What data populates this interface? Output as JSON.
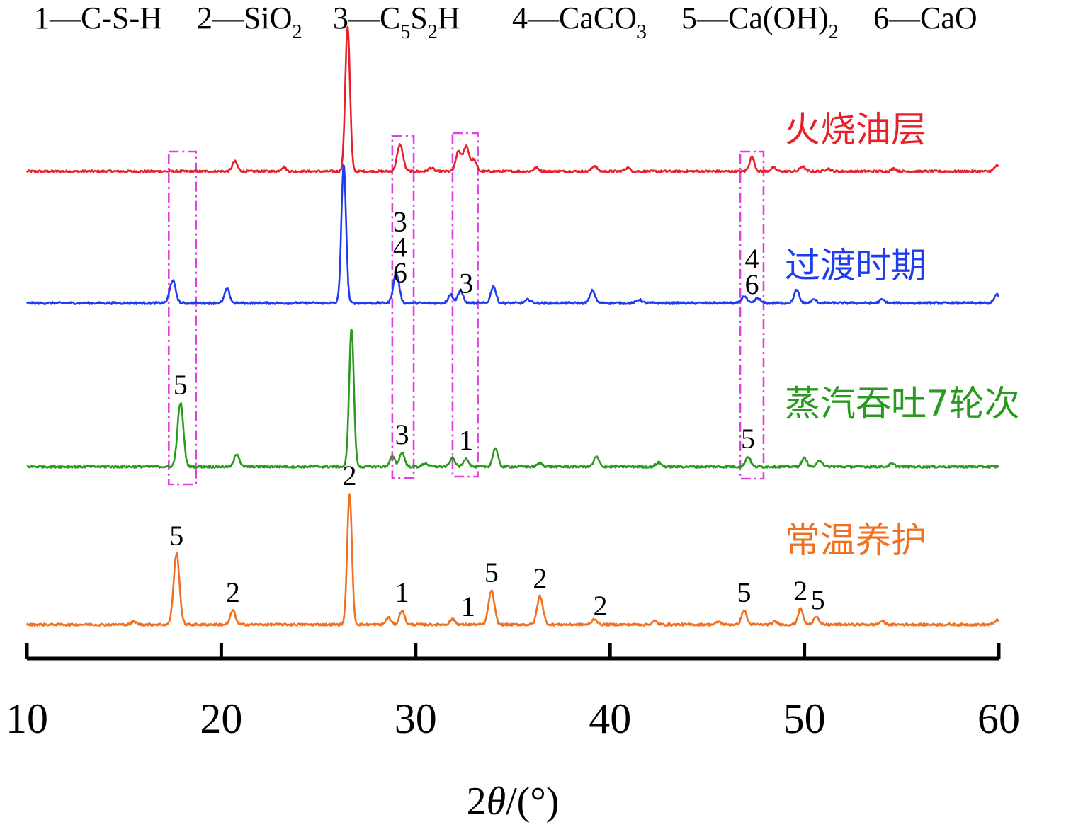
{
  "chart_data": {
    "type": "line",
    "title": "",
    "xlabel": "2θ/(°)",
    "ylabel": "",
    "xlim": [
      10,
      60
    ],
    "xticks": [
      "10",
      "20",
      "30",
      "40",
      "50",
      "60"
    ],
    "grid": false,
    "legend_position": "top",
    "phase_legend": [
      {
        "num": "1",
        "name": "C-S-H"
      },
      {
        "num": "2",
        "name": "SiO",
        "sub": "2"
      },
      {
        "num": "3",
        "name": "C",
        "sub": "5",
        "name2": "S",
        "sub2": "2",
        "name3": "H"
      },
      {
        "num": "4",
        "name": "CaCO",
        "sub": "3"
      },
      {
        "num": "5",
        "name": "Ca(OH)",
        "sub": "2"
      },
      {
        "num": "6",
        "name": "CaO"
      }
    ],
    "colors": {
      "fire": "#e8202a",
      "transition": "#1e3cf0",
      "steam": "#2a9a1e",
      "normal": "#f07020",
      "box": "#e040e0",
      "axis": "#000000"
    },
    "series": [
      {
        "name": "火烧油层",
        "color": "#e8202a",
        "baseline": 0,
        "peaks": [
          [
            20.7,
            14
          ],
          [
            23.2,
            6
          ],
          [
            26.5,
            205
          ],
          [
            29.2,
            38
          ],
          [
            30.8,
            5
          ],
          [
            32.2,
            28
          ],
          [
            32.6,
            36
          ],
          [
            33.0,
            16
          ],
          [
            36.2,
            5
          ],
          [
            39.2,
            8
          ],
          [
            40.9,
            5
          ],
          [
            47.3,
            20
          ],
          [
            48.4,
            5
          ],
          [
            49.9,
            7
          ],
          [
            51.2,
            4
          ],
          [
            54.6,
            4
          ],
          [
            59.9,
            8
          ]
        ]
      },
      {
        "name": "过渡时期",
        "color": "#1e3cf0",
        "baseline": 0,
        "peaks": [
          [
            17.5,
            32
          ],
          [
            20.3,
            20
          ],
          [
            26.3,
            195
          ],
          [
            29.0,
            42
          ],
          [
            31.8,
            12
          ],
          [
            32.3,
            18
          ],
          [
            34.0,
            24
          ],
          [
            35.8,
            5
          ],
          [
            39.1,
            18
          ],
          [
            41.5,
            5
          ],
          [
            46.9,
            10
          ],
          [
            47.6,
            7
          ],
          [
            49.6,
            18
          ],
          [
            50.5,
            5
          ],
          [
            54.0,
            5
          ],
          [
            59.9,
            12
          ]
        ]
      },
      {
        "name": "蒸汽吞吐7轮次",
        "color": "#2a9a1e",
        "baseline": 0,
        "peaks": [
          [
            17.9,
            90
          ],
          [
            20.8,
            18
          ],
          [
            26.7,
            195
          ],
          [
            28.8,
            14
          ],
          [
            29.3,
            20
          ],
          [
            30.5,
            5
          ],
          [
            31.9,
            12
          ],
          [
            32.6,
            12
          ],
          [
            34.1,
            26
          ],
          [
            36.4,
            5
          ],
          [
            39.3,
            14
          ],
          [
            42.5,
            6
          ],
          [
            47.1,
            14
          ],
          [
            50.0,
            12
          ],
          [
            50.8,
            9
          ],
          [
            54.5,
            4
          ]
        ]
      },
      {
        "name": "常温养护",
        "color": "#f07020",
        "baseline": 0,
        "peaks": [
          [
            15.5,
            4
          ],
          [
            17.7,
            100
          ],
          [
            20.6,
            20
          ],
          [
            26.6,
            185
          ],
          [
            28.6,
            10
          ],
          [
            29.3,
            20
          ],
          [
            31.9,
            8
          ],
          [
            33.9,
            48
          ],
          [
            36.4,
            40
          ],
          [
            39.2,
            8
          ],
          [
            42.3,
            5
          ],
          [
            45.6,
            4
          ],
          [
            46.9,
            20
          ],
          [
            48.5,
            4
          ],
          [
            49.8,
            22
          ],
          [
            50.6,
            12
          ],
          [
            54.0,
            5
          ],
          [
            59.9,
            6
          ]
        ]
      }
    ],
    "peak_labels": [
      {
        "series": "常温养护",
        "x": 17.7,
        "text": "5"
      },
      {
        "series": "常温养护",
        "x": 20.6,
        "text": "2"
      },
      {
        "series": "常温养护",
        "x": 26.6,
        "text": "2"
      },
      {
        "series": "常温养护",
        "x": 29.3,
        "text": "1"
      },
      {
        "series": "常温养护",
        "x": 32.7,
        "text": "1"
      },
      {
        "series": "常温养护",
        "x": 33.9,
        "text": "5"
      },
      {
        "series": "常温养护",
        "x": 36.4,
        "text": "2"
      },
      {
        "series": "常温养护",
        "x": 39.5,
        "text": "2"
      },
      {
        "series": "常温养护",
        "x": 46.9,
        "text": "5"
      },
      {
        "series": "常温养护",
        "x": 49.8,
        "text": "2"
      },
      {
        "series": "常温养护",
        "x": 50.7,
        "text": "5"
      },
      {
        "series": "蒸汽吞吐7轮次",
        "x": 17.9,
        "text": "5"
      },
      {
        "series": "蒸汽吞吐7轮次",
        "x": 29.3,
        "text": "3"
      },
      {
        "series": "蒸汽吞吐7轮次",
        "x": 32.6,
        "text": "1"
      },
      {
        "series": "蒸汽吞吐7轮次",
        "x": 47.1,
        "text": "5"
      },
      {
        "series": "过渡时期",
        "x": 29.2,
        "text": "3"
      },
      {
        "series": "过渡时期",
        "x": 29.2,
        "text": "4"
      },
      {
        "series": "过渡时期",
        "x": 29.2,
        "text": "6"
      },
      {
        "series": "过渡时期",
        "x": 32.6,
        "text": "3"
      },
      {
        "series": "过渡时期",
        "x": 47.3,
        "text": "4"
      },
      {
        "series": "过渡时期",
        "x": 47.3,
        "text": "6"
      }
    ],
    "highlight_boxes": [
      {
        "x_from": 17.3,
        "x_to": 18.7
      },
      {
        "x_from": 28.8,
        "x_to": 29.9
      },
      {
        "x_from": 31.9,
        "x_to": 33.2
      },
      {
        "x_from": 46.7,
        "x_to": 47.9
      }
    ]
  }
}
